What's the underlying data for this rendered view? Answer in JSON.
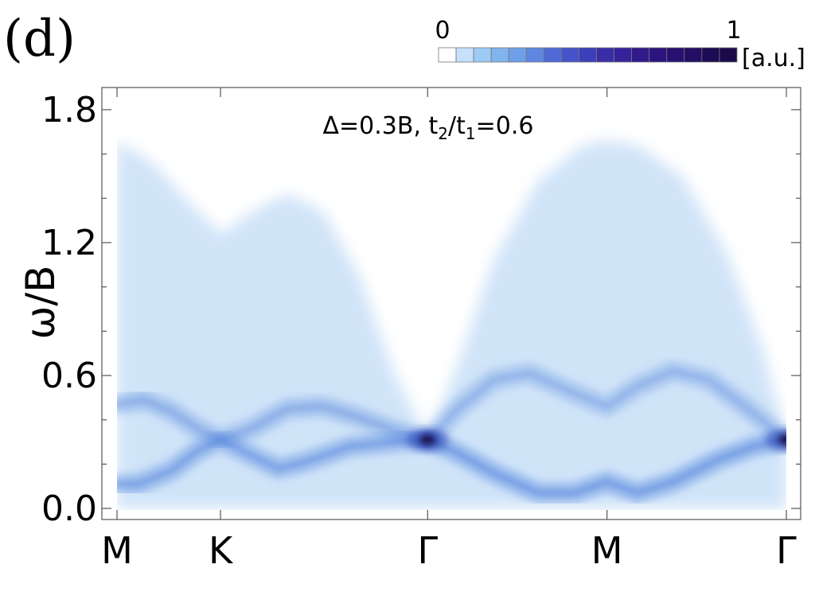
{
  "panel_label": "(d)",
  "colorbar": {
    "min_label": "0",
    "max_label": "1",
    "unit_label": "[a.u.]",
    "colors": [
      "#ffffff",
      "#c6e0fb",
      "#9dcbf4",
      "#7fb4ee",
      "#6f9fe9",
      "#5f86e0",
      "#4f6ad7",
      "#4554c9",
      "#3c3fb8",
      "#3a2ea6",
      "#36229a",
      "#311a8c",
      "#2b147e",
      "#261170",
      "#220e62",
      "#1c0b55",
      "#1a0a4a"
    ]
  },
  "chart_data": {
    "type": "heatmap",
    "title": "",
    "annotation": {
      "delta_part": "Δ=0.3B, t",
      "sub1": "2",
      "slash": "/t",
      "sub2": "1",
      "tail": "=0.6"
    },
    "ylabel": "ω/B",
    "ylim": [
      -0.05,
      1.9
    ],
    "yticks": [
      {
        "value": 0.0,
        "label": "0.0"
      },
      {
        "value": 0.6,
        "label": "0.6"
      },
      {
        "value": 1.2,
        "label": "1.2"
      },
      {
        "value": 1.8,
        "label": "1.8"
      }
    ],
    "xlim": [
      0,
      3.78
    ],
    "xticks": [
      {
        "value": 0,
        "label": "M"
      },
      {
        "value": 0.577,
        "label": "K"
      },
      {
        "value": 1.732,
        "label": "Γ"
      },
      {
        "value": 2.732,
        "label": "M"
      },
      {
        "value": 3.732,
        "label": "Γ"
      }
    ],
    "continuum_upper_edge": [
      [
        0.0,
        1.66
      ],
      [
        0.2,
        1.56
      ],
      [
        0.4,
        1.38
      ],
      [
        0.577,
        1.24
      ],
      [
        0.8,
        1.36
      ],
      [
        0.95,
        1.42
      ],
      [
        1.15,
        1.34
      ],
      [
        1.35,
        1.05
      ],
      [
        1.55,
        0.6
      ],
      [
        1.732,
        0.31
      ],
      [
        1.9,
        0.65
      ],
      [
        2.1,
        1.12
      ],
      [
        2.35,
        1.48
      ],
      [
        2.6,
        1.64
      ],
      [
        2.732,
        1.66
      ],
      [
        2.9,
        1.64
      ],
      [
        3.15,
        1.5
      ],
      [
        3.4,
        1.15
      ],
      [
        3.6,
        0.72
      ],
      [
        3.732,
        0.31
      ]
    ],
    "branches": [
      {
        "name": "",
        "intensity": 0.55,
        "points": [
          [
            0.0,
            0.47
          ],
          [
            0.15,
            0.49
          ],
          [
            0.3,
            0.44
          ],
          [
            0.45,
            0.36
          ],
          [
            0.577,
            0.31
          ],
          [
            0.75,
            0.36
          ],
          [
            0.95,
            0.45
          ],
          [
            1.15,
            0.46
          ],
          [
            1.35,
            0.41
          ],
          [
            1.55,
            0.35
          ],
          [
            1.732,
            0.31
          ]
        ]
      },
      {
        "name": "",
        "intensity": 0.7,
        "points": [
          [
            0.0,
            0.11
          ],
          [
            0.12,
            0.11
          ],
          [
            0.3,
            0.17
          ],
          [
            0.45,
            0.26
          ],
          [
            0.577,
            0.31
          ],
          [
            0.7,
            0.26
          ],
          [
            0.9,
            0.18
          ],
          [
            1.05,
            0.21
          ],
          [
            1.3,
            0.28
          ],
          [
            1.55,
            0.3
          ],
          [
            1.732,
            0.31
          ]
        ]
      },
      {
        "name": "",
        "intensity": 0.5,
        "points": [
          [
            1.732,
            0.31
          ],
          [
            1.9,
            0.45
          ],
          [
            2.1,
            0.58
          ],
          [
            2.3,
            0.61
          ],
          [
            2.55,
            0.52
          ],
          [
            2.732,
            0.46
          ],
          [
            2.9,
            0.55
          ],
          [
            3.1,
            0.62
          ],
          [
            3.3,
            0.58
          ],
          [
            3.5,
            0.46
          ],
          [
            3.732,
            0.31
          ]
        ]
      },
      {
        "name": "",
        "intensity": 0.75,
        "points": [
          [
            1.732,
            0.31
          ],
          [
            1.9,
            0.25
          ],
          [
            2.1,
            0.16
          ],
          [
            2.35,
            0.07
          ],
          [
            2.55,
            0.07
          ],
          [
            2.732,
            0.12
          ],
          [
            2.9,
            0.07
          ],
          [
            3.1,
            0.12
          ],
          [
            3.35,
            0.22
          ],
          [
            3.55,
            0.28
          ],
          [
            3.732,
            0.31
          ]
        ]
      },
      {
        "name": "",
        "intensity": 0.4,
        "points": [
          [
            0.0,
            0.31
          ],
          [
            0.577,
            0.31
          ],
          [
            1.2,
            0.31
          ],
          [
            1.732,
            0.31
          ],
          [
            2.4,
            0.31
          ],
          [
            3.2,
            0.31
          ],
          [
            3.732,
            0.31
          ]
        ]
      }
    ],
    "hotspots": [
      {
        "x": 1.732,
        "y": 0.31,
        "intensity": 1.0
      },
      {
        "x": 3.732,
        "y": 0.31,
        "intensity": 1.0
      }
    ]
  }
}
